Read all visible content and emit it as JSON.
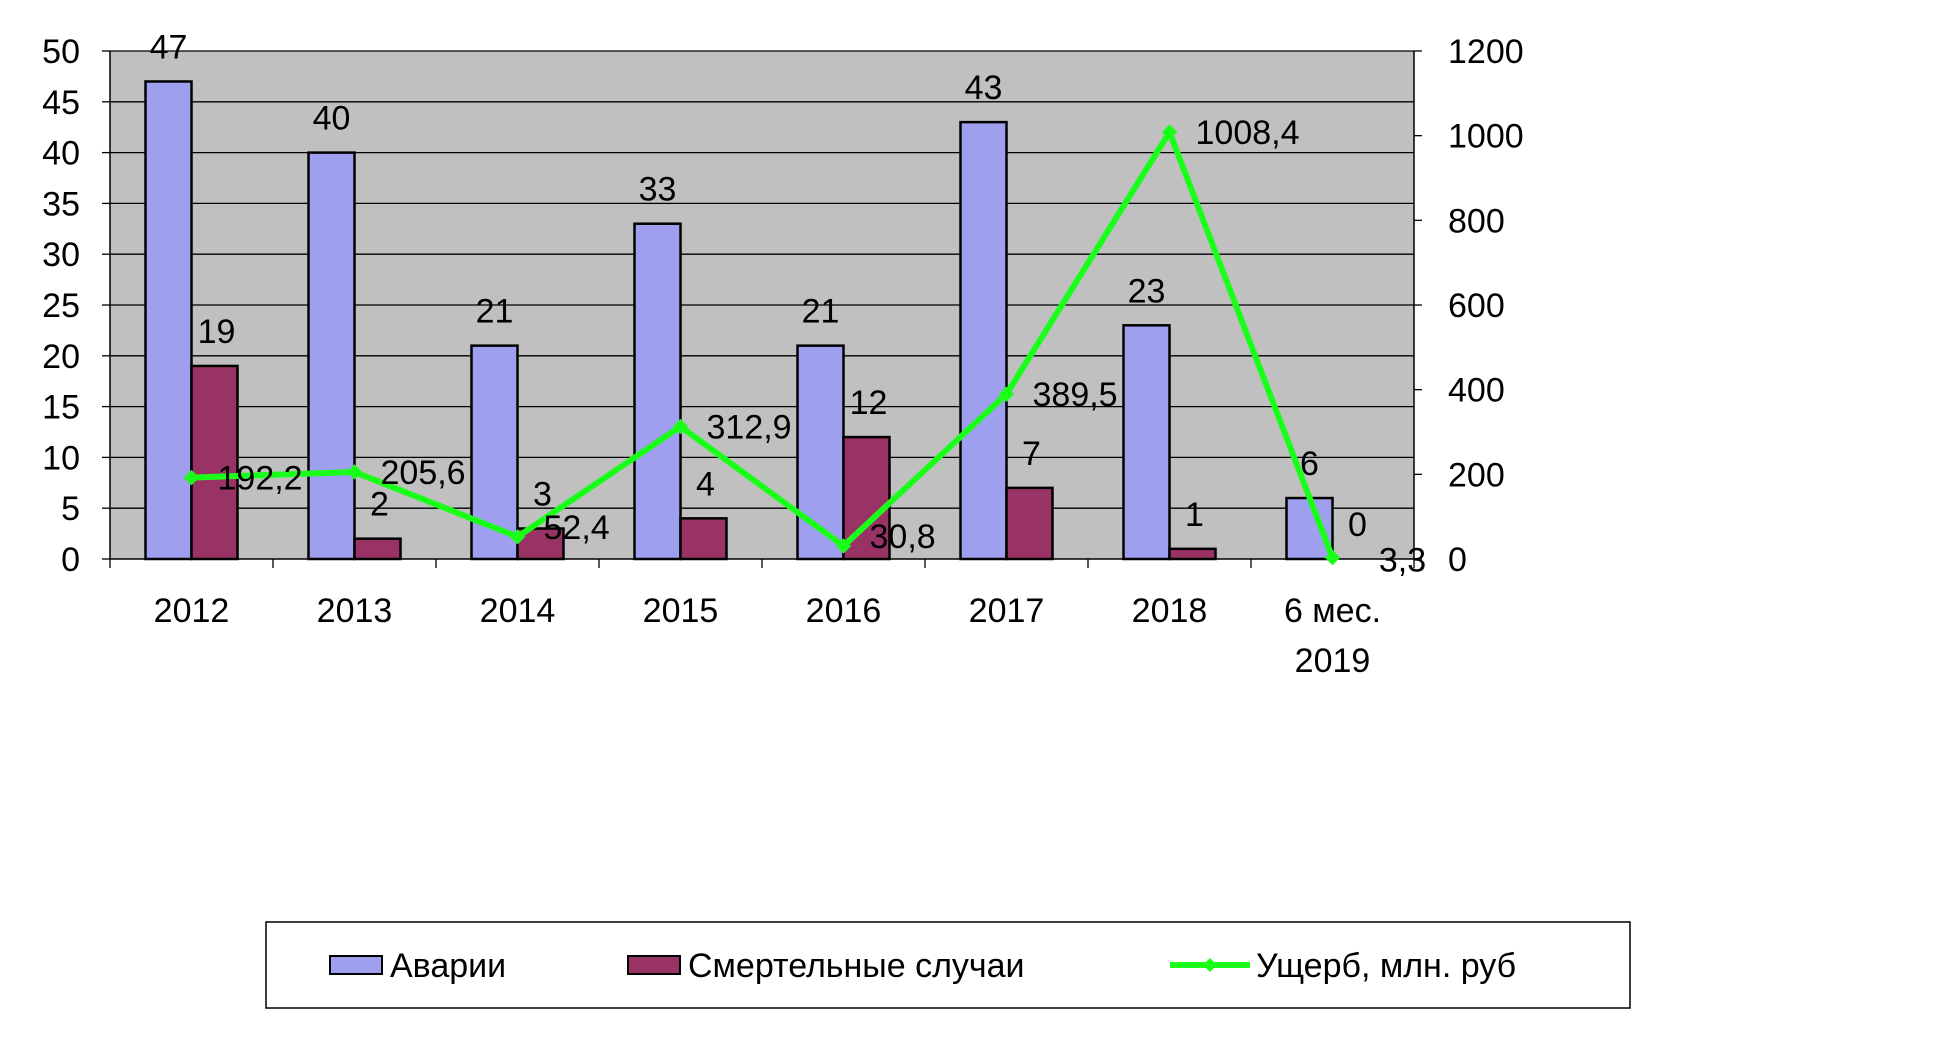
{
  "chart_data": {
    "type": "bar",
    "categories": [
      "2012",
      "2013",
      "2014",
      "2015",
      "2016",
      "2017",
      "2018",
      "6 мес. 2019"
    ],
    "series": [
      {
        "name": "Аварии",
        "type": "bar",
        "axis": "left",
        "color": "#9f9fef",
        "values": [
          47,
          40,
          21,
          33,
          21,
          43,
          23,
          6
        ],
        "labels": [
          "47",
          "40",
          "21",
          "33",
          "21",
          "43",
          "23",
          "6"
        ]
      },
      {
        "name": "Смертельные случаи",
        "type": "bar",
        "axis": "left",
        "color": "#993366",
        "values": [
          19,
          2,
          3,
          4,
          12,
          7,
          1,
          0
        ],
        "labels": [
          "19",
          "2",
          "3",
          "4",
          "12",
          "7",
          "1",
          "0"
        ]
      },
      {
        "name": "Ущерб, млн. руб",
        "type": "line",
        "axis": "right",
        "color": "#19ff19",
        "values": [
          192.2,
          205.6,
          52.4,
          312.9,
          30.8,
          389.5,
          1008.4,
          3.3
        ],
        "labels": [
          "192,2",
          "205,6",
          "52,4",
          "312,9",
          "30,8",
          "389,5",
          "1008,4",
          "3,3"
        ]
      }
    ],
    "y_left": {
      "range": [
        0,
        50
      ],
      "ticks": [
        "0",
        "5",
        "10",
        "15",
        "20",
        "25",
        "30",
        "35",
        "40",
        "45",
        "50"
      ]
    },
    "y_right": {
      "range": [
        0,
        1200
      ],
      "ticks": [
        "0",
        "200",
        "400",
        "600",
        "800",
        "1000",
        "1200"
      ]
    },
    "plot_background": "#c0c0c0",
    "grid": "horizontal",
    "legend_position": "bottom"
  }
}
